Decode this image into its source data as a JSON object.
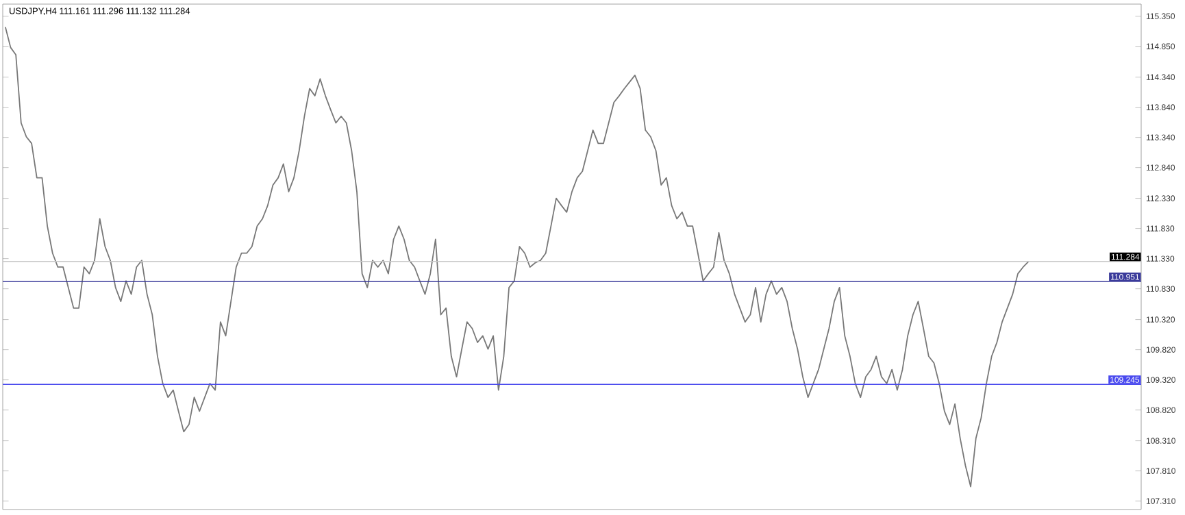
{
  "chart_data": {
    "type": "line",
    "title": "USDJPY,H4  111.161 111.296 111.132 111.284",
    "categories": [
      null,
      null,
      null,
      null,
      null,
      null,
      null,
      null,
      null,
      null,
      null,
      null,
      null,
      null,
      null,
      null,
      null,
      null,
      null,
      null,
      null,
      null,
      null,
      null,
      null,
      null,
      null,
      null,
      null,
      null,
      null,
      null,
      null,
      null,
      null,
      null,
      null,
      null,
      null,
      null,
      null,
      null,
      null,
      null,
      null,
      null,
      null,
      null,
      null,
      null,
      null,
      null,
      null,
      null,
      null,
      null,
      null,
      null,
      null,
      null,
      null,
      null,
      null,
      null,
      null,
      null,
      null,
      null,
      null,
      null,
      null,
      null,
      null,
      null,
      null,
      null,
      null,
      null,
      null,
      null,
      null,
      null,
      null,
      null,
      null,
      null,
      null,
      null,
      null,
      null,
      null,
      null,
      null,
      null,
      null,
      null,
      null,
      null,
      null,
      null,
      null,
      null,
      null,
      null,
      null,
      null,
      null,
      null,
      null,
      null,
      null,
      null,
      null,
      null,
      null,
      null,
      null,
      null,
      null,
      null,
      null,
      null,
      null,
      null,
      null,
      null,
      null,
      null,
      null,
      null,
      null,
      null,
      null,
      null,
      null,
      null,
      null,
      null,
      null,
      null,
      null,
      null,
      null,
      null,
      null,
      null,
      null,
      null,
      null,
      null,
      null,
      null,
      null,
      null,
      null,
      null,
      null,
      null,
      null,
      null,
      null,
      null,
      null,
      null,
      null,
      null,
      null,
      null,
      null,
      null,
      null,
      null,
      null,
      null,
      null,
      null,
      null,
      null,
      null,
      null,
      null,
      null,
      null,
      null,
      null,
      null,
      null,
      null,
      null,
      null,
      null,
      null,
      null,
      null,
      null,
      null,
      null,
      null,
      null,
      null,
      null,
      null,
      null,
      null,
      null,
      null,
      null,
      null,
      null,
      null,
      null,
      null,
      null,
      null,
      null,
      null,
      null
    ],
    "series": [
      {
        "color": "#787878",
        "values": [
          115.17,
          114.83,
          114.71,
          113.58,
          113.35,
          113.24,
          112.67,
          112.67,
          111.87,
          111.42,
          111.19,
          111.19,
          110.85,
          110.51,
          110.51,
          111.19,
          111.08,
          111.3,
          111.99,
          111.53,
          111.3,
          110.85,
          110.62,
          110.96,
          110.74,
          111.19,
          111.3,
          110.74,
          110.4,
          109.71,
          109.26,
          109.03,
          109.15,
          108.8,
          108.46,
          108.58,
          109.03,
          108.8,
          109.03,
          109.26,
          109.15,
          110.28,
          110.05,
          110.62,
          111.19,
          111.42,
          111.42,
          111.53,
          111.87,
          111.99,
          112.21,
          112.55,
          112.67,
          112.9,
          112.44,
          112.67,
          113.12,
          113.69,
          114.15,
          114.03,
          114.31,
          114.03,
          113.8,
          113.58,
          113.69,
          113.58,
          113.12,
          112.44,
          111.08,
          110.85,
          111.3,
          111.19,
          111.3,
          111.08,
          111.65,
          111.87,
          111.65,
          111.3,
          111.19,
          110.96,
          110.74,
          111.08,
          111.65,
          110.4,
          110.51,
          109.71,
          109.37,
          109.83,
          110.28,
          110.17,
          109.94,
          110.05,
          109.83,
          110.05,
          109.15,
          109.71,
          110.85,
          110.96,
          111.53,
          111.42,
          111.19,
          111.26,
          111.3,
          111.42,
          111.87,
          112.33,
          112.21,
          112.1,
          112.44,
          112.67,
          112.78,
          113.12,
          113.46,
          113.24,
          113.24,
          113.58,
          113.92,
          114.03,
          114.15,
          114.26,
          114.37,
          114.15,
          113.46,
          113.35,
          113.12,
          112.55,
          112.67,
          112.21,
          111.99,
          112.1,
          111.87,
          111.87,
          111.42,
          110.96,
          111.08,
          111.19,
          111.76,
          111.3,
          111.08,
          110.74,
          110.51,
          110.28,
          110.4,
          110.85,
          110.28,
          110.74,
          110.96,
          110.74,
          110.85,
          110.62,
          110.17,
          109.83,
          109.37,
          109.03,
          109.26,
          109.49,
          109.83,
          110.17,
          110.62,
          110.85,
          110.05,
          109.71,
          109.26,
          109.03,
          109.37,
          109.49,
          109.71,
          109.37,
          109.26,
          109.49,
          109.15,
          109.49,
          110.05,
          110.4,
          110.62,
          110.17,
          109.71,
          109.6,
          109.26,
          108.8,
          108.58,
          108.92,
          108.35,
          107.9,
          107.55,
          108.35,
          108.69,
          109.26,
          109.71,
          109.94,
          110.28,
          110.51,
          110.74,
          111.08,
          111.19,
          111.28,
          null,
          null,
          null,
          null,
          null,
          null,
          null,
          null,
          null,
          null,
          null,
          null,
          null,
          null,
          null,
          null,
          null,
          null,
          null,
          null,
          null
        ]
      }
    ],
    "ylim": [
      107.17,
      115.55
    ],
    "yticks": [
      {
        "value": 107.31,
        "label": "107.310"
      },
      {
        "value": 107.81,
        "label": "107.810"
      },
      {
        "value": 108.31,
        "label": "108.310"
      },
      {
        "value": 108.82,
        "label": "108.820"
      },
      {
        "value": 109.32,
        "label": "109.320"
      },
      {
        "value": 109.82,
        "label": "109.820"
      },
      {
        "value": 110.32,
        "label": "110.320"
      },
      {
        "value": 110.83,
        "label": "110.830"
      },
      {
        "value": 111.33,
        "label": "111.330"
      },
      {
        "value": 111.83,
        "label": "111.830"
      },
      {
        "value": 112.33,
        "label": "112.330"
      },
      {
        "value": 112.84,
        "label": "112.840"
      },
      {
        "value": 113.34,
        "label": "113.340"
      },
      {
        "value": 113.84,
        "label": "113.840"
      },
      {
        "value": 114.34,
        "label": "114.340"
      },
      {
        "value": 114.85,
        "label": "114.850"
      },
      {
        "value": 115.35,
        "label": "115.350"
      }
    ],
    "ref_lines": [
      {
        "axis": "y",
        "value": 111.284,
        "label": "111.284",
        "color": "#c8c8c8"
      },
      {
        "axis": "y",
        "value": 110.951,
        "label": "110.951",
        "color": "#3a3a9a"
      },
      {
        "axis": "y",
        "value": 109.245,
        "label": "109.245",
        "color": "#4a4aee"
      }
    ],
    "tick_labels": "y"
  }
}
